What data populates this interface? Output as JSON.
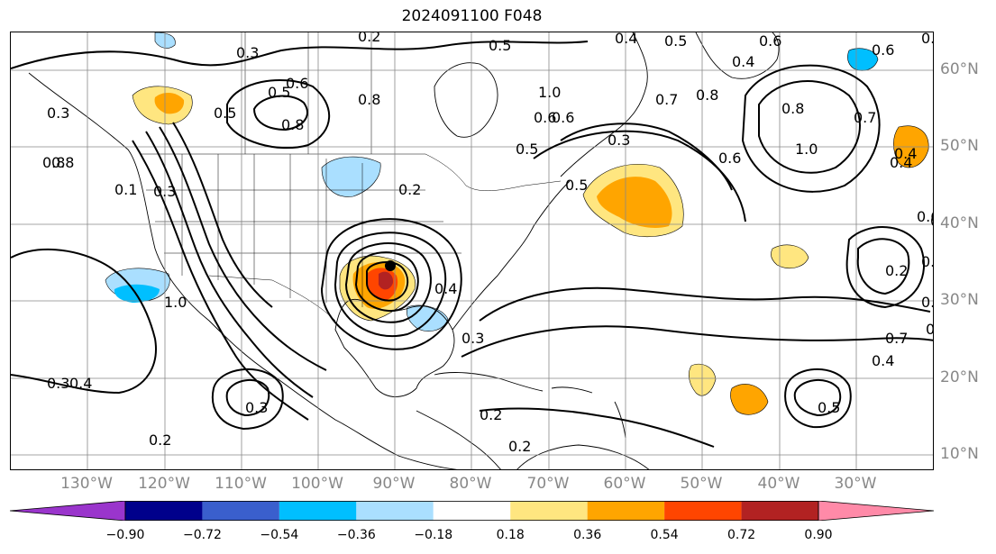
{
  "title": "2024091100 F048",
  "lon_labels": [
    "130°W",
    "120°W",
    "110°W",
    "100°W",
    "90°W",
    "80°W",
    "70°W",
    "60°W",
    "50°W",
    "40°W",
    "30°W"
  ],
  "lat_labels": [
    "60°N",
    "50°N",
    "40°N",
    "30°N",
    "20°N",
    "10°N"
  ],
  "colorbar": {
    "ticks": [
      "−0.90",
      "−0.72",
      "−0.54",
      "−0.36",
      "−0.18",
      "0.18",
      "0.36",
      "0.54",
      "0.72",
      "0.90"
    ],
    "colors": [
      "#9a35cc",
      "#00008b",
      "#3a5fcd",
      "#00bfff",
      "#aadfff",
      "#ffffff",
      "#ffe680",
      "#ffa500",
      "#ff4500",
      "#b22222",
      "#ff8aa8"
    ]
  },
  "contour_labels": [
    "0.3",
    "0.2",
    "0.5",
    "0.4",
    "0.5",
    "0.6",
    "0.5",
    "0.4",
    "0.6",
    "0.8",
    "0.5",
    "0.6",
    "0.8",
    "1.0",
    "0.8",
    "0.7",
    "0.6",
    "0.5",
    "0.5",
    "0.6",
    "0.3",
    "0.4",
    "0.8",
    "0.6",
    "1.0",
    "0.7",
    "0.4",
    "0.5",
    "0.6",
    "0.7",
    "0.8",
    "0.2",
    "0.2",
    "0.3",
    "0.1",
    "0.3",
    "0.8",
    "1.0",
    "0.4",
    "0.2",
    "0.3",
    "0.3",
    "0.2",
    "0.2",
    "0.4",
    "0.5",
    "0.7",
    "0.8",
    "0.3",
    "0.8",
    "0.6",
    "0.4"
  ]
}
